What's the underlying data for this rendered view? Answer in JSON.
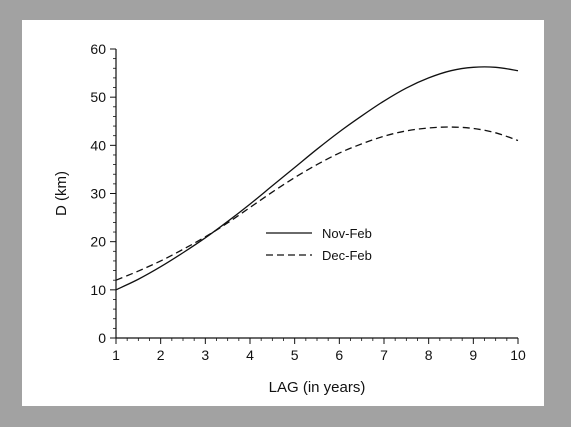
{
  "chart_data": {
    "type": "line",
    "title": "",
    "xlabel": "LAG (in years)",
    "ylabel": "D (km)",
    "xlim": [
      1,
      10
    ],
    "ylim": [
      0,
      60
    ],
    "xticks": [
      1,
      2,
      3,
      4,
      5,
      6,
      7,
      8,
      9,
      10
    ],
    "yticks": [
      0,
      10,
      20,
      30,
      40,
      50,
      60
    ],
    "grid": false,
    "legend_position": "center",
    "x": [
      1,
      1.5,
      2,
      2.5,
      3,
      3.5,
      4,
      4.5,
      5,
      5.5,
      6,
      6.5,
      7,
      7.5,
      8,
      8.5,
      9,
      9.5,
      10
    ],
    "series": [
      {
        "name": "Nov-Feb",
        "style": "solid",
        "color": "#111111",
        "values": [
          10,
          12.2,
          14.8,
          17.7,
          20.8,
          24.2,
          27.8,
          31.6,
          35.4,
          39.2,
          42.8,
          46.1,
          49.2,
          51.9,
          54,
          55.5,
          56.2,
          56.2,
          55.5
        ]
      },
      {
        "name": "Dec-Feb",
        "style": "dashed",
        "color": "#111111",
        "values": [
          12,
          13.9,
          16,
          18.4,
          21,
          23.9,
          27.1,
          30.3,
          33.3,
          36,
          38.4,
          40.3,
          41.9,
          43,
          43.6,
          43.8,
          43.5,
          42.6,
          41
        ]
      }
    ]
  }
}
